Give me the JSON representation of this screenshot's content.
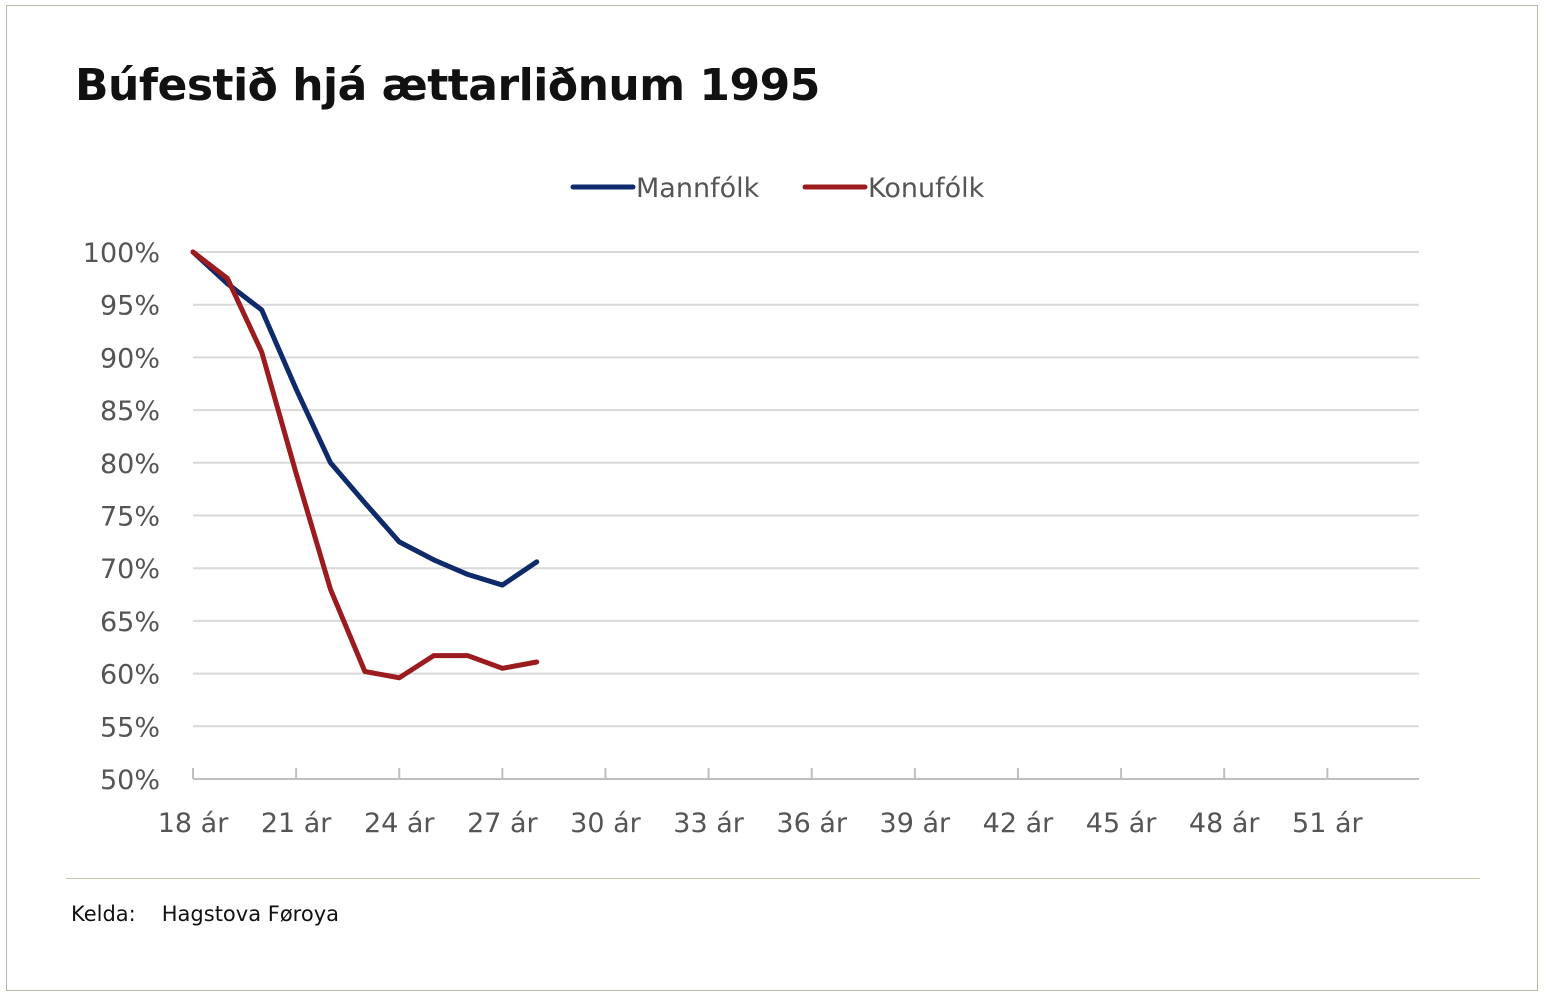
{
  "colors": {
    "mannfolk": "#0e2a6b",
    "konufolk": "#9b1b1e",
    "grid": "#d9d9d9",
    "axis": "#bfbfbf",
    "text": "#555555"
  },
  "source": {
    "label": "Kelda:",
    "value": "Hagstova Føroya"
  },
  "chart_data": {
    "type": "line",
    "title": "Búfestið hjá ættarliðnum 1995",
    "x": [
      18,
      19,
      20,
      21,
      22,
      23,
      24,
      25,
      26,
      27,
      28
    ],
    "xlim": [
      18,
      53.667
    ],
    "x_ticks": [
      18,
      21,
      24,
      27,
      30,
      33,
      36,
      39,
      42,
      45,
      48,
      51
    ],
    "x_tick_labels": [
      "18 ár",
      "21 ár",
      "24 ár",
      "27 ár",
      "30 ár",
      "33 ár",
      "36 ár",
      "39 ár",
      "42 ár",
      "45 ár",
      "48 ár",
      "51 ár"
    ],
    "ylim": [
      50,
      100
    ],
    "y_ticks": [
      50,
      55,
      60,
      65,
      70,
      75,
      80,
      85,
      90,
      95,
      100
    ],
    "y_tick_labels": [
      "50%",
      "55%",
      "60%",
      "65%",
      "70%",
      "75%",
      "80%",
      "85%",
      "90%",
      "95%",
      "100%"
    ],
    "grid": true,
    "legend_position": "top",
    "series": [
      {
        "name": "Mannfólk",
        "color": "#0e2a6b",
        "values": [
          100,
          97,
          94.5,
          87,
          80,
          76.2,
          72.5,
          70.8,
          69.4,
          68.4,
          70.6
        ]
      },
      {
        "name": "Konufólk",
        "color": "#9b1b1e",
        "values": [
          100,
          97.5,
          90.5,
          79,
          68,
          60.2,
          59.6,
          61.7,
          61.7,
          60.5,
          61.1
        ]
      }
    ]
  }
}
